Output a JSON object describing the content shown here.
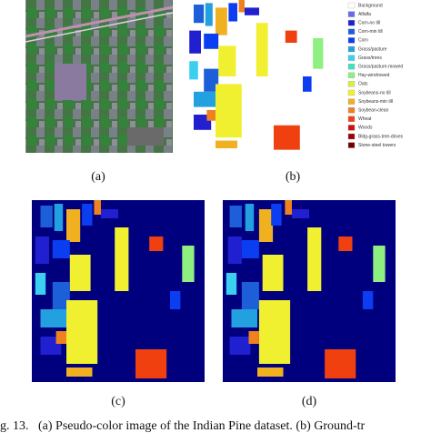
{
  "figure": {
    "legend": [
      {
        "name": "Background",
        "color": "#ffffff"
      },
      {
        "name": "Alfalfa",
        "color": "#6a6ae8"
      },
      {
        "name": "Corn-no till",
        "color": "#2020d0"
      },
      {
        "name": "Corn-min till",
        "color": "#1d5fd8"
      },
      {
        "name": "Corn",
        "color": "#0a3ef0"
      },
      {
        "name": "Grass/pasture",
        "color": "#23a0e0"
      },
      {
        "name": "Grass/trees",
        "color": "#3cd0f0"
      },
      {
        "name": "Grass/pasture-mowed",
        "color": "#40e0c0"
      },
      {
        "name": "Hay-windrowed",
        "color": "#8ef080"
      },
      {
        "name": "Oats",
        "color": "#d6f040"
      },
      {
        "name": "Soybeans-no till",
        "color": "#f0f030"
      },
      {
        "name": "Soybeans-min till",
        "color": "#f0b020"
      },
      {
        "name": "Soybean-clean",
        "color": "#f08020"
      },
      {
        "name": "Wheat",
        "color": "#f04010"
      },
      {
        "name": "Woods",
        "color": "#d01010"
      },
      {
        "name": "Bldg-grass-tree-drives",
        "color": "#a00000"
      },
      {
        "name": "Stone-steel towers",
        "color": "#700000"
      }
    ],
    "panels": [
      "(a)",
      "(b)",
      "(c)",
      "(d)"
    ],
    "caption": "g. 13.   (a) Pseudo-color image of the Indian Pine dataset. (b) Ground-tr"
  }
}
